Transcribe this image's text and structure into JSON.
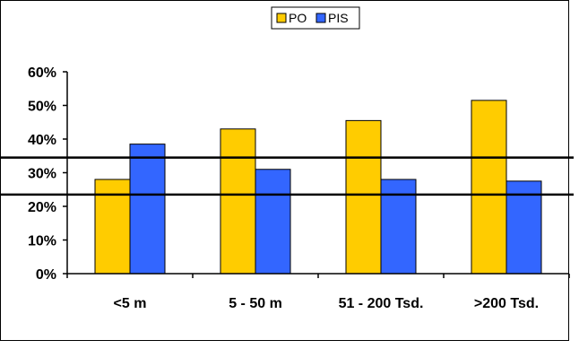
{
  "chart_data": {
    "type": "bar",
    "title": "",
    "xlabel": "",
    "ylabel": "",
    "categories": [
      "<5 m",
      "5 - 50 m",
      "51 - 200 Tsd.",
      ">200 Tsd."
    ],
    "series": [
      {
        "name": "PO",
        "values": [
          28,
          43,
          45.5,
          51.5
        ],
        "color": "#FFCC00"
      },
      {
        "name": "PIS",
        "values": [
          38.5,
          31,
          28,
          27.5
        ],
        "color": "#3366FF"
      }
    ],
    "ylim": [
      0,
      60
    ],
    "yticks": [
      "0%",
      "10%",
      "20%",
      "30%",
      "40%",
      "50%",
      "60%"
    ],
    "reference_lines": [
      34.5,
      23.5
    ],
    "grid": false,
    "legend_position": "top-center"
  }
}
